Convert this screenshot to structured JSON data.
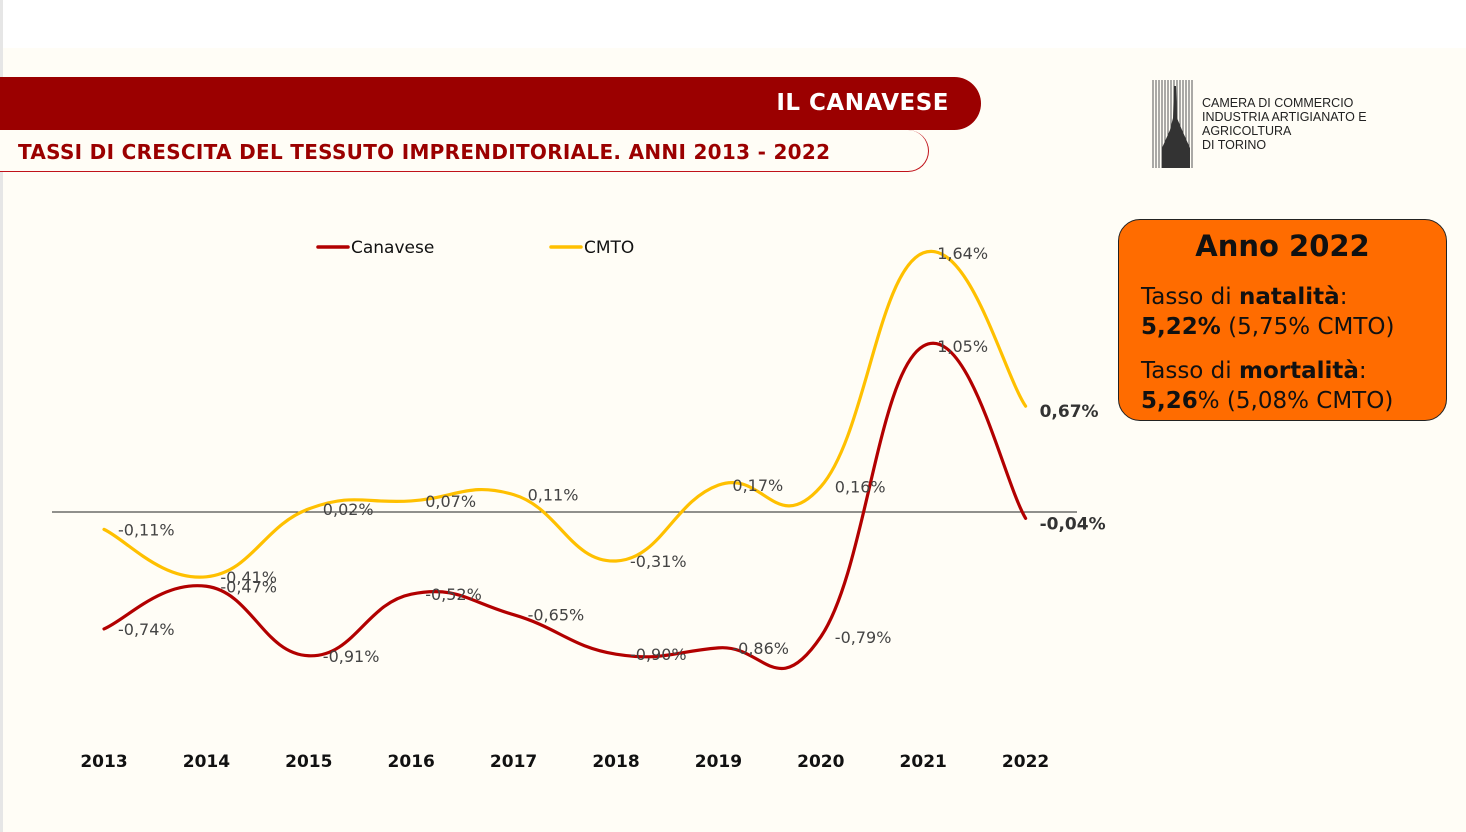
{
  "header": {
    "banner_title": "IL CANAVESE",
    "subtitle": "TASSI DI CRESCITA DEL TESSUTO IMPRENDITORIALE. ANNI 2013 - 2022"
  },
  "logo": {
    "line1": "CAMERA DI COMMERCIO",
    "line2": "INDUSTRIA ARTIGIANATO E AGRICOLTURA",
    "line3": "DI TORINO"
  },
  "infobox": {
    "title": "Anno 2022",
    "natality_prefix": "Tasso di ",
    "natality_word": "natalità",
    "natality_suffix": ":",
    "natality_value": "5,22%",
    "natality_cmto": " (5,75% CMTO)",
    "mortality_prefix": "Tasso di ",
    "mortality_word": "mortalità",
    "mortality_suffix": ":",
    "mortality_value": "5,26",
    "mortality_rest": "% (5,08% CMTO)",
    "background_color": "#ff6c00"
  },
  "chart_data": {
    "type": "line",
    "title": "",
    "xlabel": "",
    "ylabel": "",
    "ylim": [
      -1.2,
      1.9
    ],
    "grid": false,
    "legend_position": "top",
    "categories": [
      "2013",
      "2014",
      "2015",
      "2016",
      "2017",
      "2018",
      "2019",
      "2020",
      "2021",
      "2022"
    ],
    "series": [
      {
        "name": "Canavese",
        "color": "#b20000",
        "values": [
          -0.74,
          -0.47,
          -0.91,
          -0.52,
          -0.65,
          -0.9,
          -0.86,
          -0.79,
          1.05,
          -0.04
        ],
        "labels": [
          "-0,74%",
          "-0,47%",
          "-0,91%",
          "-0,52%",
          "-0,65%",
          "-0,90%",
          "-0,86%",
          "-0,79%",
          "1,05%",
          "-0,04%"
        ]
      },
      {
        "name": "CMTO",
        "color": "#ffc000",
        "values": [
          -0.11,
          -0.41,
          0.02,
          0.07,
          0.11,
          -0.31,
          0.17,
          0.16,
          1.64,
          0.67
        ],
        "labels": [
          "-0,11%",
          "-0,41%",
          "0,02%",
          "0,07%",
          "0,11%",
          "-0,31%",
          "0,17%",
          "0,16%",
          "1,64%",
          "0,67%"
        ]
      }
    ]
  }
}
